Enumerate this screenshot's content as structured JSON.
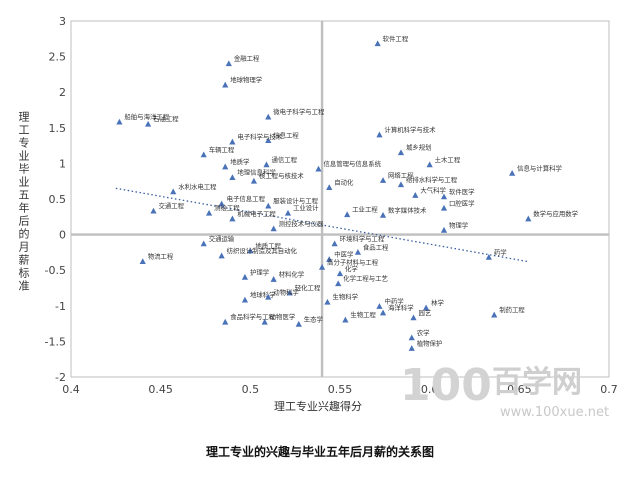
{
  "chart_data": {
    "type": "scatter",
    "title": "",
    "caption": "理工专业的兴趣与毕业五年后月薪的关系图",
    "xlabel": "理工专业兴趣得分",
    "ylabel": "理工专业毕业五年后的月薪标准",
    "xlim": [
      0.4,
      0.7
    ],
    "ylim": [
      -2,
      3
    ],
    "x_ticks": [
      "0.4",
      "0.45",
      "0.5",
      "0.55",
      "0.6",
      "0.65",
      "0.7"
    ],
    "y_ticks": [
      "-2",
      "-1.5",
      "-1",
      "-0.5",
      "0",
      "0.5",
      "1",
      "1.5",
      "2",
      "2.5",
      "3"
    ],
    "grid": false,
    "reference_lines": {
      "x": 0.54,
      "y": 0
    },
    "trendline": {
      "style": "dotted",
      "from": [
        0.425,
        0.65
      ],
      "to": [
        0.655,
        -0.38
      ]
    },
    "marker_color": "#4a72b8",
    "points": [
      {
        "label": "软件工程",
        "x": 0.571,
        "y": 2.68
      },
      {
        "label": "金融工程",
        "x": 0.488,
        "y": 2.4
      },
      {
        "label": "地球物理学",
        "x": 0.486,
        "y": 2.1
      },
      {
        "label": "船舶与海洋工程",
        "x": 0.427,
        "y": 1.58
      },
      {
        "label": "石油工程",
        "x": 0.443,
        "y": 1.55
      },
      {
        "label": "微电子科学与工程",
        "x": 0.51,
        "y": 1.65
      },
      {
        "label": "计算机科学与技术",
        "x": 0.572,
        "y": 1.4
      },
      {
        "label": "信息工程",
        "x": 0.51,
        "y": 1.32
      },
      {
        "label": "电子科学与技术",
        "x": 0.49,
        "y": 1.3
      },
      {
        "label": "城乡规划",
        "x": 0.584,
        "y": 1.15
      },
      {
        "label": "车辆工程",
        "x": 0.474,
        "y": 1.12
      },
      {
        "label": "地质学",
        "x": 0.486,
        "y": 0.95
      },
      {
        "label": "通信工程",
        "x": 0.509,
        "y": 0.98
      },
      {
        "label": "土木工程",
        "x": 0.6,
        "y": 0.98
      },
      {
        "label": "信息管理与信息系统",
        "x": 0.538,
        "y": 0.92
      },
      {
        "label": "信息与计算科学",
        "x": 0.646,
        "y": 0.86
      },
      {
        "label": "地理信息科学",
        "x": 0.49,
        "y": 0.8
      },
      {
        "label": "核工程与核技术",
        "x": 0.502,
        "y": 0.75
      },
      {
        "label": "网络工程",
        "x": 0.574,
        "y": 0.76
      },
      {
        "label": "给排水科学与工程",
        "x": 0.584,
        "y": 0.7
      },
      {
        "label": "自动化",
        "x": 0.544,
        "y": 0.66
      },
      {
        "label": "大气科学",
        "x": 0.592,
        "y": 0.55
      },
      {
        "label": "软件医学",
        "x": 0.608,
        "y": 0.53
      },
      {
        "label": "水利水电工程",
        "x": 0.457,
        "y": 0.6
      },
      {
        "label": "服装设计与工程",
        "x": 0.51,
        "y": 0.4
      },
      {
        "label": "电子信息工程",
        "x": 0.484,
        "y": 0.43
      },
      {
        "label": "口腔医学",
        "x": 0.608,
        "y": 0.37
      },
      {
        "label": "工业设计",
        "x": 0.521,
        "y": 0.3
      },
      {
        "label": "交通工程",
        "x": 0.446,
        "y": 0.33
      },
      {
        "label": "测绘工程",
        "x": 0.477,
        "y": 0.3
      },
      {
        "label": "工业工程",
        "x": 0.554,
        "y": 0.28
      },
      {
        "label": "数字媒体技术",
        "x": 0.574,
        "y": 0.27
      },
      {
        "label": "机械电子工程",
        "x": 0.49,
        "y": 0.22
      },
      {
        "label": "数学与应用数学",
        "x": 0.655,
        "y": 0.22
      },
      {
        "label": "测控技术与仪器",
        "x": 0.513,
        "y": 0.08
      },
      {
        "label": "物理学",
        "x": 0.608,
        "y": 0.06
      },
      {
        "label": "交通运输",
        "x": 0.474,
        "y": -0.13
      },
      {
        "label": "环境科学与工程",
        "x": 0.547,
        "y": -0.13
      },
      {
        "label": "地质工程",
        "x": 0.5,
        "y": -0.23
      },
      {
        "label": "食品工程",
        "x": 0.56,
        "y": -0.25
      },
      {
        "label": "药学",
        "x": 0.633,
        "y": -0.32
      },
      {
        "label": "物流工程",
        "x": 0.44,
        "y": -0.38
      },
      {
        "label": "纺织设计制造及其自动化",
        "x": 0.484,
        "y": -0.3
      },
      {
        "label": "中医学",
        "x": 0.544,
        "y": -0.35
      },
      {
        "label": "高分子材料与工程",
        "x": 0.54,
        "y": -0.46
      },
      {
        "label": "护理学",
        "x": 0.497,
        "y": -0.6
      },
      {
        "label": "材料化学",
        "x": 0.513,
        "y": -0.63
      },
      {
        "label": "化学",
        "x": 0.55,
        "y": -0.55
      },
      {
        "label": "化学工程与工艺",
        "x": 0.549,
        "y": -0.69
      },
      {
        "label": "轻化工程",
        "x": 0.522,
        "y": -0.82
      },
      {
        "label": "地球科学",
        "x": 0.497,
        "y": -0.92
      },
      {
        "label": "动物科学",
        "x": 0.51,
        "y": -0.88
      },
      {
        "label": "生物科学",
        "x": 0.543,
        "y": -0.95
      },
      {
        "label": "中药学",
        "x": 0.572,
        "y": -1.01
      },
      {
        "label": "林学",
        "x": 0.598,
        "y": -1.03
      },
      {
        "label": "海洋科学",
        "x": 0.574,
        "y": -1.1
      },
      {
        "label": "制药工程",
        "x": 0.636,
        "y": -1.13
      },
      {
        "label": "园艺",
        "x": 0.591,
        "y": -1.17
      },
      {
        "label": "生物工程",
        "x": 0.553,
        "y": -1.2
      },
      {
        "label": "食品科学与工程",
        "x": 0.486,
        "y": -1.23
      },
      {
        "label": "动物医学",
        "x": 0.508,
        "y": -1.23
      },
      {
        "label": "生态学",
        "x": 0.527,
        "y": -1.26
      },
      {
        "label": "农学",
        "x": 0.59,
        "y": -1.45
      },
      {
        "label": "植物保护",
        "x": 0.59,
        "y": -1.6
      }
    ]
  },
  "watermark": {
    "logo_digits": "100",
    "logo_text": "百学网",
    "url": "www.100xue.net"
  }
}
